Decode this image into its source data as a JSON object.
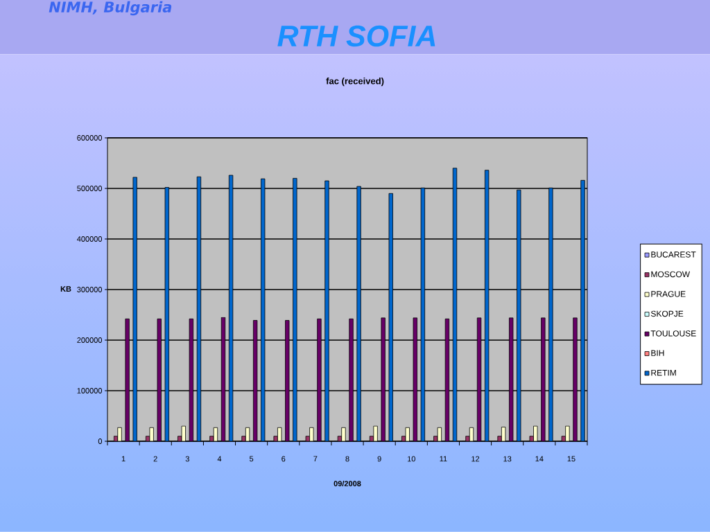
{
  "chart_data": {
    "type": "bar",
    "title": "fac (received)",
    "xlabel": "09/2008",
    "ylabel": "KB",
    "annotations": [
      "NIMH, Bulgaria",
      "RTH SOFIA"
    ],
    "categories": [
      "1",
      "2",
      "3",
      "4",
      "5",
      "6",
      "7",
      "8",
      "9",
      "10",
      "11",
      "12",
      "13",
      "14",
      "15"
    ],
    "series": [
      {
        "name": "BUCAREST",
        "color": "#9999ff",
        "values": [
          0,
          0,
          0,
          0,
          0,
          0,
          0,
          0,
          0,
          0,
          0,
          0,
          0,
          0,
          0
        ]
      },
      {
        "name": "MOSCOW",
        "color": "#993366",
        "values": [
          10000,
          10000,
          10000,
          10000,
          10000,
          10000,
          10000,
          10000,
          10000,
          10000,
          10000,
          10000,
          10000,
          10000,
          10000
        ]
      },
      {
        "name": "PRAGUE",
        "color": "#ffffcc",
        "values": [
          27000,
          27000,
          30000,
          27000,
          27000,
          27000,
          27000,
          27000,
          30000,
          27000,
          27000,
          27000,
          28000,
          30000,
          30000
        ]
      },
      {
        "name": "SKOPJE",
        "color": "#ccffff",
        "values": [
          0,
          0,
          0,
          0,
          0,
          0,
          0,
          0,
          0,
          0,
          0,
          0,
          0,
          0,
          0
        ]
      },
      {
        "name": "TOULOUSE",
        "color": "#660066",
        "values": [
          242000,
          242000,
          242000,
          245000,
          239000,
          239000,
          242000,
          242000,
          244000,
          244000,
          242000,
          244000,
          244000,
          244000,
          244000
        ]
      },
      {
        "name": "BIH",
        "color": "#ff8080",
        "values": [
          0,
          0,
          0,
          0,
          0,
          0,
          0,
          0,
          0,
          0,
          0,
          0,
          0,
          0,
          0
        ]
      },
      {
        "name": "RETIM",
        "color": "#0066cc",
        "values": [
          522000,
          502000,
          523000,
          526000,
          519000,
          520000,
          515000,
          504000,
          490000,
          501000,
          540000,
          536000,
          497000,
          501000,
          516000
        ]
      }
    ],
    "ylim": [
      0,
      600000
    ],
    "yticks": [
      0,
      100000,
      200000,
      300000,
      400000,
      500000,
      600000
    ],
    "grid": "y",
    "legend": "right"
  }
}
